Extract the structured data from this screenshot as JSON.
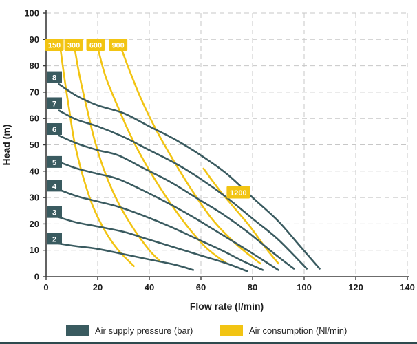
{
  "colors": {
    "pressure": "#3a5b60",
    "consumption": "#f2c413",
    "grid": "#c7c7c7",
    "axis": "#3c3c3c",
    "tick_text": "#1d1d1d",
    "label_text": "#ffffff",
    "bottom_strip": "#2e4a4e"
  },
  "legend": [
    {
      "label": "Air supply pressure (bar)",
      "color": "#3a5b60"
    },
    {
      "label": "Air consumption (Nl/min)",
      "color": "#f2c413"
    }
  ],
  "chart_data": {
    "type": "line",
    "title": "",
    "xlabel": "Flow rate (l/min)",
    "ylabel": "Head (m)",
    "xlim": [
      0,
      140
    ],
    "ylim": [
      0,
      100
    ],
    "x_tick_step": 20,
    "y_tick_step": 10,
    "grid": "dashed",
    "series_groups": [
      {
        "name": "Air supply pressure (bar)",
        "color": "#3a5b60",
        "label_style": "box-left",
        "series": [
          {
            "name": "8",
            "label_head": 75.7,
            "points": [
              [
                5,
                73
              ],
              [
                12,
                68.5
              ],
              [
                20,
                65
              ],
              [
                30,
                62
              ],
              [
                40,
                57
              ],
              [
                50,
                52
              ],
              [
                60,
                46
              ],
              [
                70,
                39
              ],
              [
                80,
                30
              ],
              [
                90,
                21
              ],
              [
                98,
                12
              ],
              [
                106,
                3
              ]
            ]
          },
          {
            "name": "7",
            "label_head": 65.8,
            "points": [
              [
                5,
                63
              ],
              [
                12,
                59.5
              ],
              [
                20,
                57
              ],
              [
                30,
                53
              ],
              [
                40,
                48
              ],
              [
                50,
                43
              ],
              [
                60,
                37
              ],
              [
                70,
                30
              ],
              [
                80,
                22
              ],
              [
                90,
                14
              ],
              [
                101,
                3
              ]
            ]
          },
          {
            "name": "6",
            "label_head": 56.0,
            "points": [
              [
                5,
                53.5
              ],
              [
                12,
                50.5
              ],
              [
                20,
                48
              ],
              [
                28,
                46
              ],
              [
                38,
                41
              ],
              [
                48,
                36
              ],
              [
                58,
                30
              ],
              [
                68,
                24
              ],
              [
                78,
                17
              ],
              [
                88,
                9
              ],
              [
                96,
                3
              ]
            ]
          },
          {
            "name": "5",
            "label_head": 43.5,
            "points": [
              [
                5,
                43.5
              ],
              [
                12,
                41
              ],
              [
                20,
                39
              ],
              [
                28,
                37
              ],
              [
                38,
                32.5
              ],
              [
                48,
                27.5
              ],
              [
                58,
                22
              ],
              [
                68,
                16
              ],
              [
                78,
                10
              ],
              [
                90,
                2.5
              ]
            ]
          },
          {
            "name": "4",
            "label_head": 34.5,
            "points": [
              [
                5,
                33
              ],
              [
                12,
                30.5
              ],
              [
                20,
                28.5
              ],
              [
                28,
                26.5
              ],
              [
                38,
                23
              ],
              [
                48,
                19
              ],
              [
                58,
                14.5
              ],
              [
                68,
                10
              ],
              [
                76,
                6
              ],
              [
                84,
                2.5
              ]
            ]
          },
          {
            "name": "3",
            "label_head": 24.5,
            "points": [
              [
                5,
                22.5
              ],
              [
                12,
                20.5
              ],
              [
                20,
                19
              ],
              [
                30,
                17
              ],
              [
                40,
                14
              ],
              [
                50,
                11
              ],
              [
                60,
                8
              ],
              [
                70,
                5
              ],
              [
                78,
                2
              ]
            ]
          },
          {
            "name": "2",
            "label_head": 14.4,
            "points": [
              [
                5,
                12.5
              ],
              [
                12,
                11.5
              ],
              [
                20,
                10.5
              ],
              [
                30,
                8.5
              ],
              [
                40,
                6.5
              ],
              [
                50,
                4.5
              ],
              [
                57,
                2.5
              ]
            ]
          }
        ]
      },
      {
        "name": "Air consumption (Nl/min)",
        "color": "#f2c413",
        "label_style": "box-float",
        "series": [
          {
            "name": "150",
            "label_x": 3.2,
            "label_y": 88,
            "points": [
              [
                5.5,
                87
              ],
              [
                7,
                76
              ],
              [
                9,
                63
              ],
              [
                11,
                51
              ],
              [
                14,
                39
              ],
              [
                18,
                27
              ],
              [
                23,
                17
              ],
              [
                28,
                10
              ],
              [
                34,
                4
              ]
            ]
          },
          {
            "name": "300",
            "label_x": 10.7,
            "label_y": 88,
            "points": [
              [
                11,
                87
              ],
              [
                13,
                76
              ],
              [
                16,
                63
              ],
              [
                19,
                51
              ],
              [
                23,
                39
              ],
              [
                28,
                28
              ],
              [
                34,
                18
              ],
              [
                40,
                10
              ],
              [
                44,
                6
              ]
            ]
          },
          {
            "name": "600",
            "label_x": 19.2,
            "label_y": 88,
            "points": [
              [
                20,
                87
              ],
              [
                23,
                76
              ],
              [
                28,
                64
              ],
              [
                33,
                53
              ],
              [
                39,
                42
              ],
              [
                46,
                31
              ],
              [
                54,
                20
              ],
              [
                62,
                11
              ],
              [
                70,
                5
              ]
            ]
          },
          {
            "name": "900",
            "label_x": 27.9,
            "label_y": 88,
            "points": [
              [
                29,
                87
              ],
              [
                32,
                79
              ],
              [
                37,
                67
              ],
              [
                43,
                55
              ],
              [
                50,
                43
              ],
              [
                57,
                32
              ],
              [
                65,
                21
              ],
              [
                74,
                12
              ],
              [
                83,
                5
              ]
            ]
          },
          {
            "name": "1200",
            "label_x": 74.5,
            "label_y": 32,
            "points": [
              [
                61,
                41
              ],
              [
                67,
                33
              ],
              [
                73,
                26
              ],
              [
                79,
                19
              ],
              [
                85,
                11
              ],
              [
                90,
                5
              ]
            ]
          }
        ]
      }
    ]
  }
}
